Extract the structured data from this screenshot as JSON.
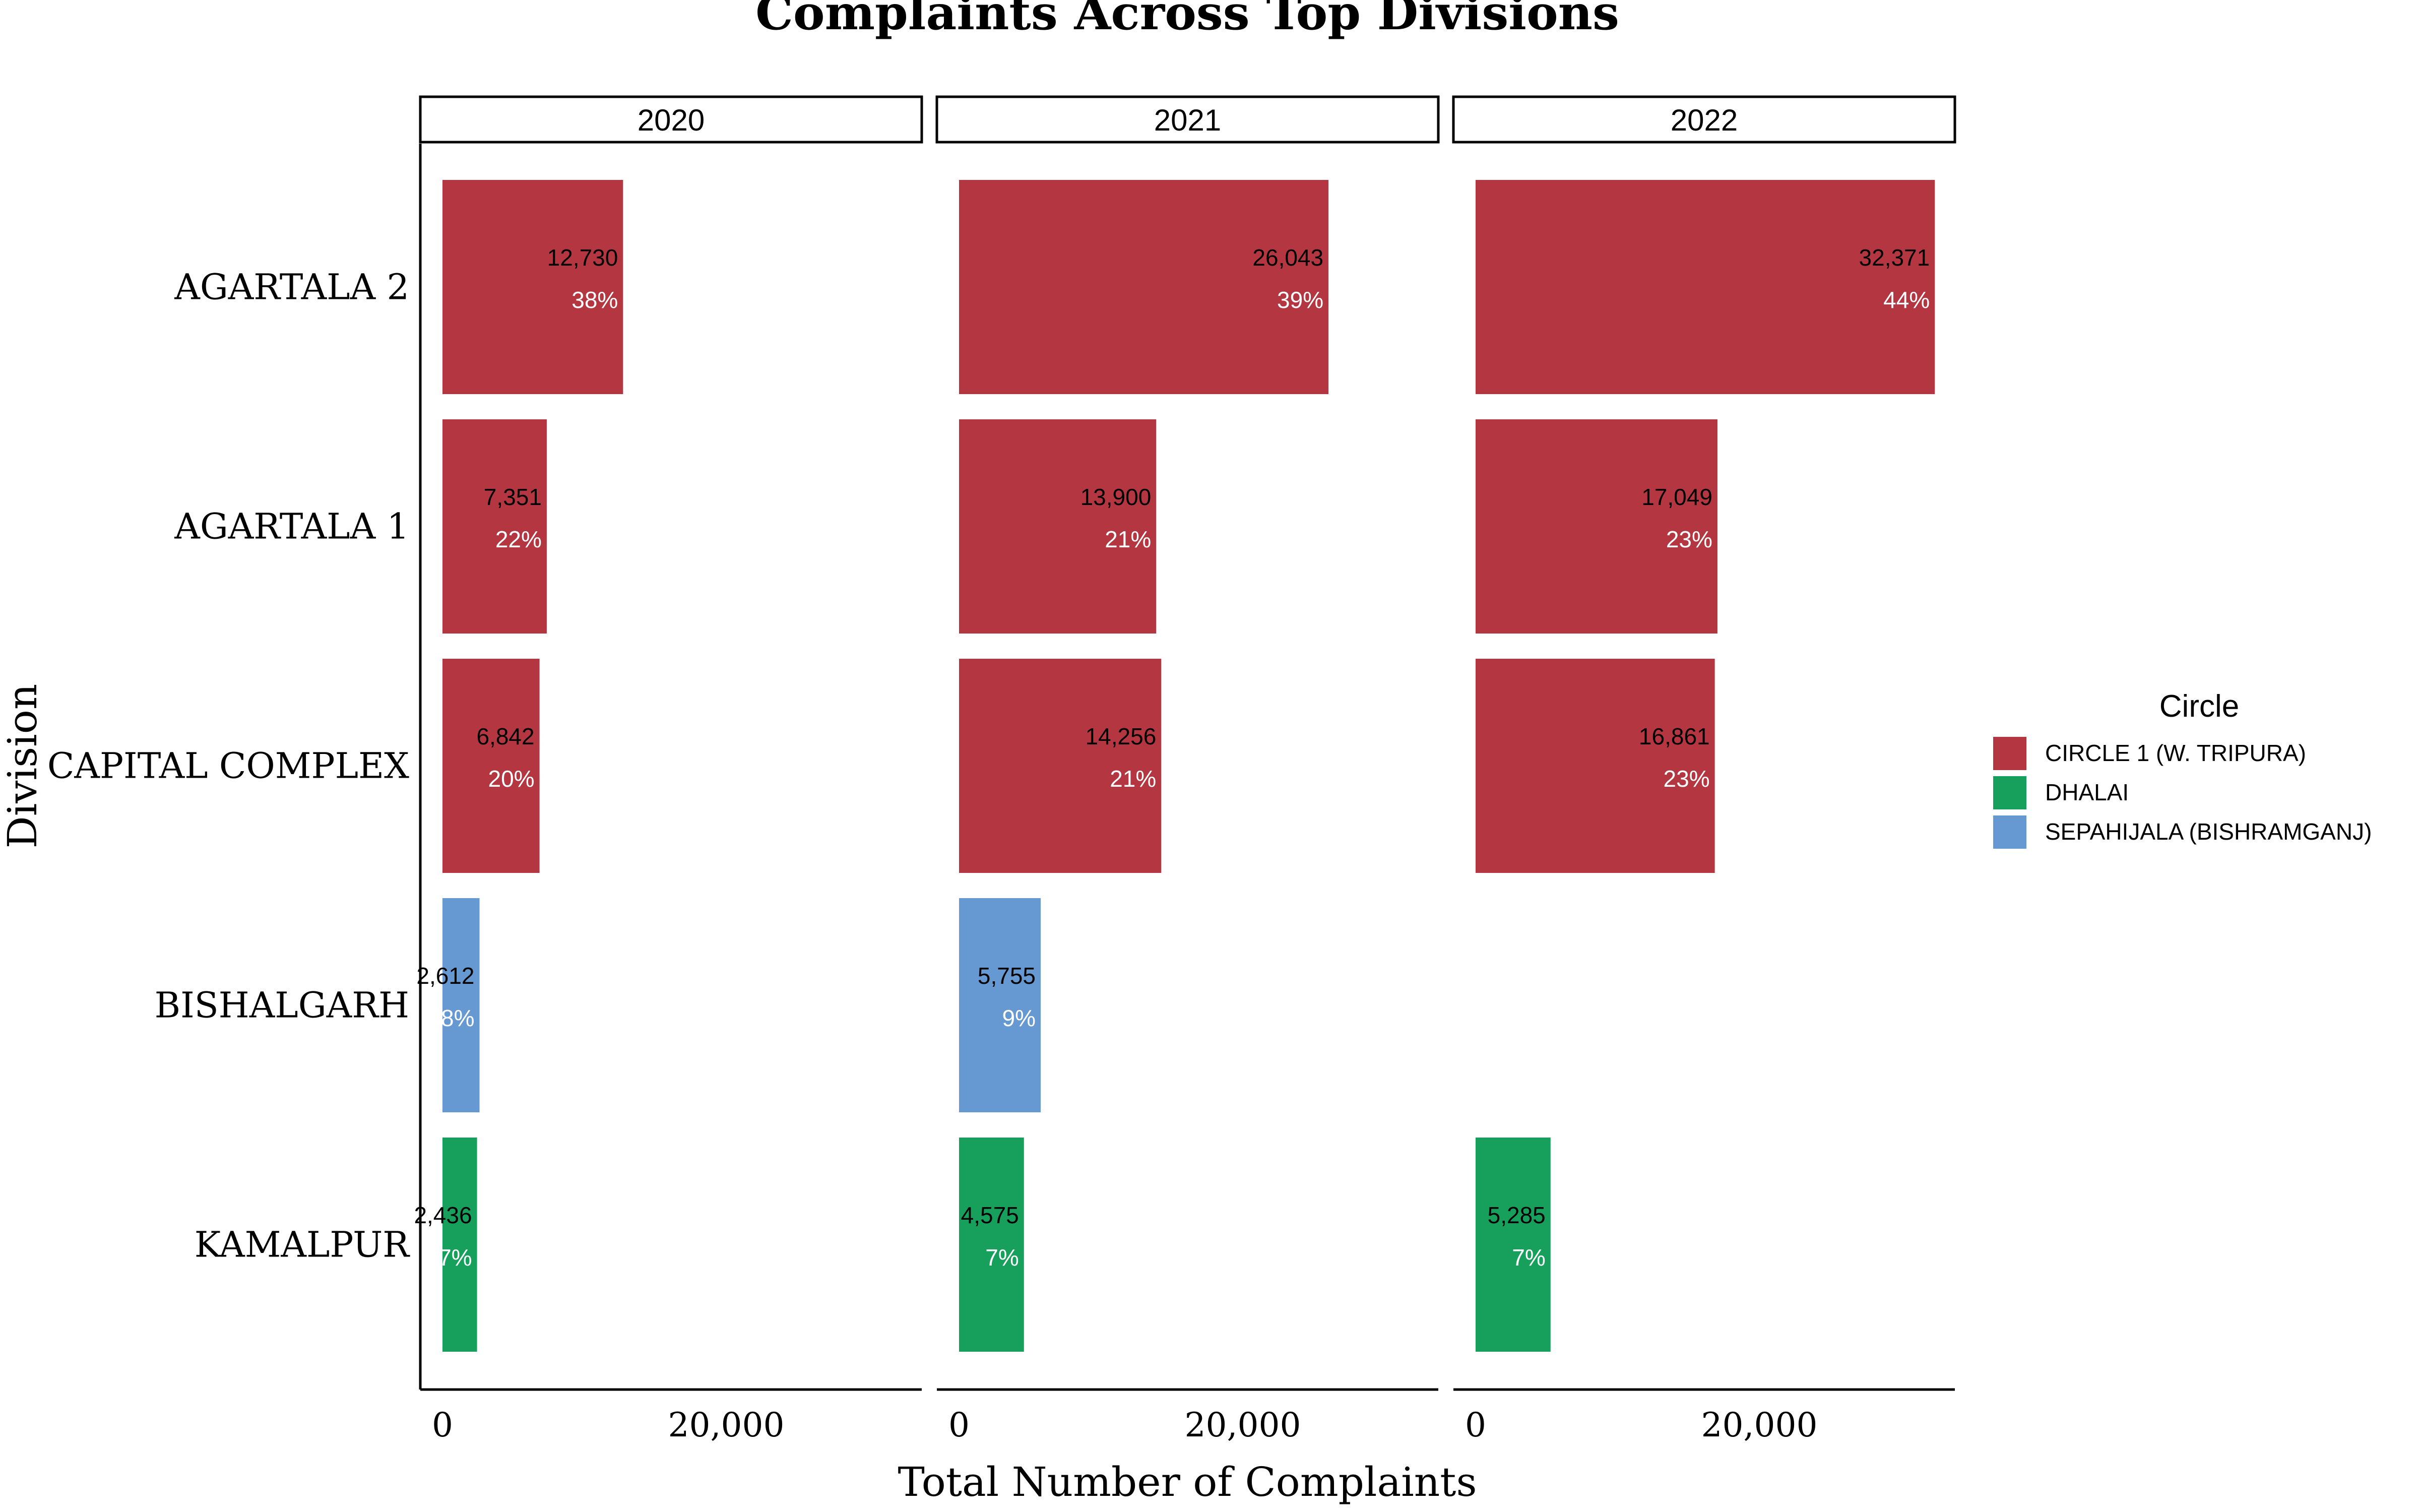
{
  "chart_data": {
    "type": "bar",
    "orientation": "horizontal",
    "title": "Complaints Across Top Divisions",
    "xlabel": "Total Number of Complaints",
    "ylabel": "Division",
    "xlim": [
      0,
      34000
    ],
    "x_ticks": [
      {
        "value": 0,
        "label": "0"
      },
      {
        "value": 20000,
        "label": "20,000"
      }
    ],
    "categories": [
      "AGARTALA 2",
      "AGARTALA 1",
      "CAPITAL COMPLEX",
      "BISHALGARH",
      "KAMALPUR"
    ],
    "facets": [
      {
        "label": "2020",
        "bars": [
          {
            "division": "AGARTALA 2",
            "circle": "CIRCLE 1 (W. TRIPURA)",
            "value": 12730,
            "value_label": "12,730",
            "pct_label": "38%"
          },
          {
            "division": "AGARTALA 1",
            "circle": "CIRCLE 1 (W. TRIPURA)",
            "value": 7351,
            "value_label": "7,351",
            "pct_label": "22%"
          },
          {
            "division": "CAPITAL COMPLEX",
            "circle": "CIRCLE 1 (W. TRIPURA)",
            "value": 6842,
            "value_label": "6,842",
            "pct_label": "20%"
          },
          {
            "division": "BISHALGARH",
            "circle": "SEPAHIJALA (BISHRAMGANJ)",
            "value": 2612,
            "value_label": "2,612",
            "pct_label": "8%"
          },
          {
            "division": "KAMALPUR",
            "circle": "DHALAI",
            "value": 2436,
            "value_label": "2,436",
            "pct_label": "7%"
          }
        ]
      },
      {
        "label": "2021",
        "bars": [
          {
            "division": "AGARTALA 2",
            "circle": "CIRCLE 1 (W. TRIPURA)",
            "value": 26043,
            "value_label": "26,043",
            "pct_label": "39%"
          },
          {
            "division": "AGARTALA 1",
            "circle": "CIRCLE 1 (W. TRIPURA)",
            "value": 13900,
            "value_label": "13,900",
            "pct_label": "21%"
          },
          {
            "division": "CAPITAL COMPLEX",
            "circle": "CIRCLE 1 (W. TRIPURA)",
            "value": 14256,
            "value_label": "14,256",
            "pct_label": "21%"
          },
          {
            "division": "BISHALGARH",
            "circle": "SEPAHIJALA (BISHRAMGANJ)",
            "value": 5755,
            "value_label": "5,755",
            "pct_label": "9%"
          },
          {
            "division": "KAMALPUR",
            "circle": "DHALAI",
            "value": 4575,
            "value_label": "4,575",
            "pct_label": "7%"
          }
        ]
      },
      {
        "label": "2022",
        "bars": [
          {
            "division": "AGARTALA 2",
            "circle": "CIRCLE 1 (W. TRIPURA)",
            "value": 32371,
            "value_label": "32,371",
            "pct_label": "44%"
          },
          {
            "division": "AGARTALA 1",
            "circle": "CIRCLE 1 (W. TRIPURA)",
            "value": 17049,
            "value_label": "17,049",
            "pct_label": "23%"
          },
          {
            "division": "CAPITAL COMPLEX",
            "circle": "CIRCLE 1 (W. TRIPURA)",
            "value": 16861,
            "value_label": "16,861",
            "pct_label": "23%"
          },
          {
            "division": "KAMALPUR",
            "circle": "DHALAI",
            "value": 5285,
            "value_label": "5,285",
            "pct_label": "7%"
          }
        ]
      }
    ],
    "legend": {
      "title": "Circle",
      "position": "right",
      "entries": [
        {
          "name": "CIRCLE 1 (W. TRIPURA)",
          "color": "#B43641"
        },
        {
          "name": "DHALAI",
          "color": "#179F5C"
        },
        {
          "name": "SEPAHIJALA (BISHRAMGANJ)",
          "color": "#6699D2"
        }
      ]
    },
    "grid": false
  }
}
